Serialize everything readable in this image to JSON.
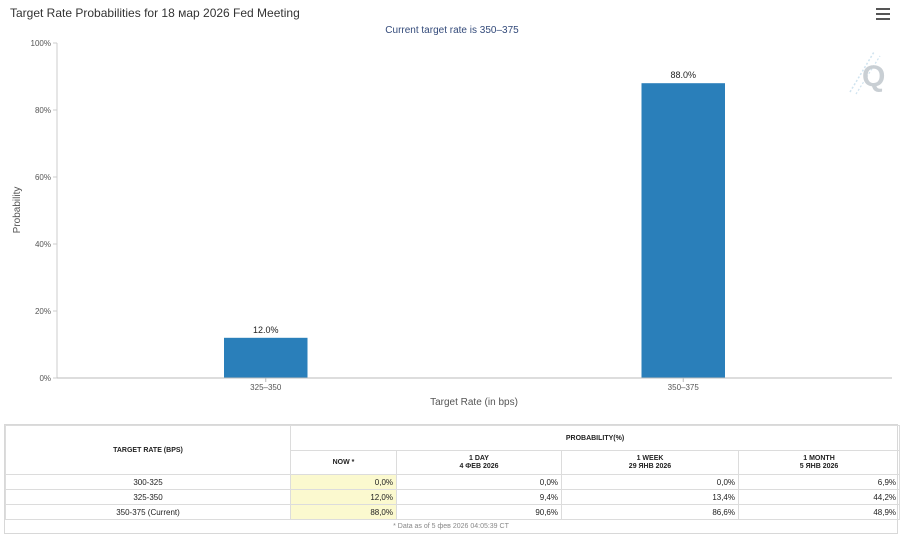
{
  "chart_data": {
    "type": "bar",
    "title": "Target Rate Probabilities for 18 мар 2026 Fed Meeting",
    "subtitle": "Current target rate is 350–375",
    "xlabel": "Target Rate (in bps)",
    "ylabel": "Probability",
    "categories": [
      "325–350",
      "350–375"
    ],
    "values": [
      12.0,
      88.0
    ],
    "data_labels": [
      "12.0%",
      "88.0%"
    ],
    "ylim": [
      0,
      100
    ],
    "yticks": [
      0,
      20,
      40,
      60,
      80,
      100
    ],
    "ytick_labels": [
      "0%",
      "20%",
      "40%",
      "60%",
      "80%",
      "100%"
    ],
    "grid": false,
    "bar_color": "#2a7fba"
  },
  "table": {
    "target_header": "TARGET RATE (BPS)",
    "prob_header": "PROBABILITY(%)",
    "columns": [
      {
        "line1": "NOW *",
        "line2": ""
      },
      {
        "line1": "1 DAY",
        "line2": "4 ФЕВ 2026"
      },
      {
        "line1": "1 WEEK",
        "line2": "29 ЯНВ 2026"
      },
      {
        "line1": "1 MONTH",
        "line2": "5 ЯНВ 2026"
      }
    ],
    "rows": [
      {
        "rate": "300-325",
        "values": [
          "0,0%",
          "0,0%",
          "0,0%",
          "6,9%"
        ]
      },
      {
        "rate": "325-350",
        "values": [
          "12,0%",
          "9,4%",
          "13,4%",
          "44,2%"
        ]
      },
      {
        "rate": "350-375 (Current)",
        "values": [
          "88,0%",
          "90,6%",
          "86,6%",
          "48,9%"
        ]
      }
    ],
    "footnote": "* Data as of 5 фев 2026 04:05:39 CT"
  },
  "icons": {
    "menu": "hamburger-menu-icon",
    "watermark": "q-logo-icon"
  }
}
